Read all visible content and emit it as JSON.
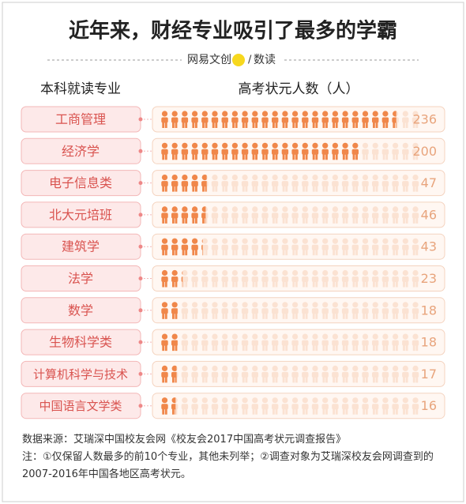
{
  "chart_data": {
    "type": "pictograph",
    "title": "近年来，财经专业吸引了最多的学霸",
    "brand": "网易文创",
    "brand_sub": "数读",
    "category_header": "本科就读专业",
    "value_header": "高考状元人数（人）",
    "categories": [
      "工商管理",
      "经济学",
      "电子信息类",
      "北大元培班",
      "建筑学",
      "法学",
      "数学",
      "生物科学类",
      "计算机科学与技术",
      "中国语言文学类"
    ],
    "values": [
      236,
      200,
      47,
      46,
      43,
      23,
      18,
      18,
      17,
      16
    ],
    "color": "#f0874a",
    "source": "数据来源：艾瑞深中国校友会网《校友会2017中国高考状元调查报告》",
    "note": "注：①仅保留人数最多的前10个专业，其他未列举；②调查对象为艾瑞深校友会网调查到的2007-2016年中国各地区高考状元。"
  }
}
